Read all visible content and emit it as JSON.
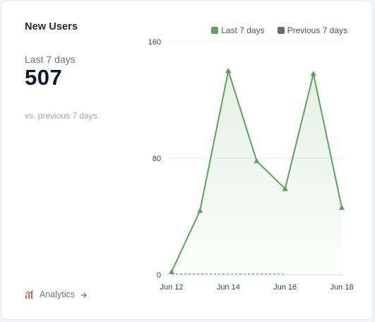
{
  "card": {
    "title": "New Users",
    "period_label": "Last 7 days",
    "value": "507",
    "comparison": "vs. previous 7 days",
    "analytics_link": "Analytics"
  },
  "legend": [
    {
      "label": "Last 7 days",
      "color": "#5aa55a"
    },
    {
      "label": "Previous 7 days",
      "color": "#6b6b6b"
    }
  ],
  "icons": {
    "analytics": "bar-chart-icon",
    "link_arrow": "arrow-right-icon"
  },
  "chart_data": {
    "type": "area",
    "x": [
      "Jun 12",
      "Jun 13",
      "Jun 14",
      "Jun 15",
      "Jun 16",
      "Jun 17",
      "Jun 18"
    ],
    "x_tick_labels": [
      "Jun 12",
      "Jun 14",
      "Jun 16",
      "Jun 18"
    ],
    "y_ticks": [
      0,
      80,
      160
    ],
    "ylim": [
      0,
      160
    ],
    "series": [
      {
        "name": "Last 7 days",
        "values": [
          2,
          44,
          140,
          78,
          59,
          138,
          46
        ],
        "color": "#5aa55a"
      },
      {
        "name": "Previous 7 days",
        "values": [
          0,
          0,
          0,
          0,
          0,
          0,
          0
        ],
        "color": "#9ca3af"
      }
    ],
    "grid": true,
    "legend_position": "top-right"
  }
}
